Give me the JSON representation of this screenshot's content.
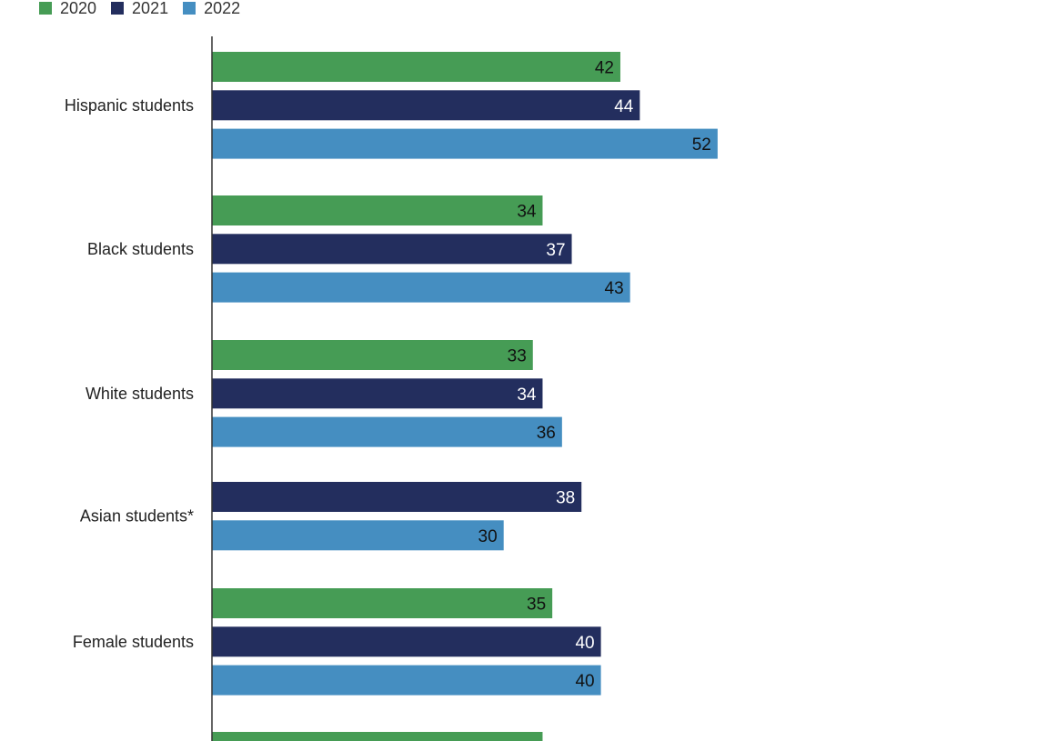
{
  "chart_data": {
    "type": "bar",
    "orientation": "horizontal",
    "title": "",
    "xlabel": "",
    "ylabel": "",
    "legend_position": "top-left",
    "grid": false,
    "categories": [
      "Hispanic students",
      "Black students",
      "White students",
      "Asian students*",
      "Female students",
      ""
    ],
    "series": [
      {
        "name": "2020",
        "color": "#469c55",
        "label_color": "#111111",
        "values": [
          42,
          34,
          33,
          null,
          35,
          34
        ]
      },
      {
        "name": "2021",
        "color": "#232e5e",
        "label_color": "#ffffff",
        "values": [
          44,
          37,
          34,
          38,
          40,
          null
        ]
      },
      {
        "name": "2022",
        "color": "#458ec1",
        "label_color": "#111111",
        "values": [
          52,
          43,
          36,
          30,
          40,
          null
        ]
      }
    ]
  }
}
